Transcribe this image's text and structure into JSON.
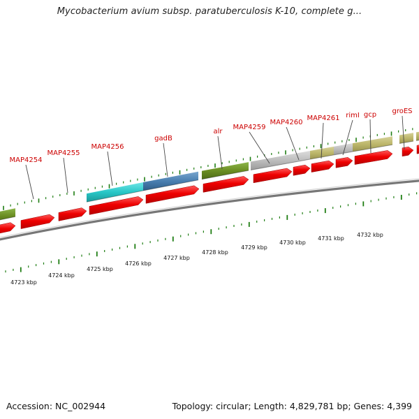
{
  "title": "Mycobacterium avium subsp. paratuberculosis K-10, complete g...",
  "footer": {
    "accession_label": "Accession:",
    "accession": "NC_002944",
    "topology_label": "Topology:",
    "topology": "circular",
    "length_label": "Length:",
    "length": "4,829,781 bp",
    "genes_label": "Genes:",
    "genes": "4,399"
  },
  "colors": {
    "label": "#cc0000",
    "tick": "#1e7d12",
    "backbone": "#888888",
    "arrow": "#ee0000",
    "cog_green": "#6b8e23",
    "cog_cyan": "#29c7c7",
    "cog_blue": "#4a7fb0",
    "cog_gray": "#bdbdbd",
    "cog_khaki": "#bdb76b"
  },
  "scale": {
    "unit": "kbp",
    "labels": [
      "4723 kbp",
      "4724 kbp",
      "4725 kbp",
      "4726 kbp",
      "4727 kbp",
      "4728 kbp",
      "4729 kbp",
      "4730 kbp",
      "4731 kbp",
      "4732 kbp"
    ]
  },
  "gene_labels": [
    "MAP4254",
    "MAP4255",
    "MAP4256",
    "gadB",
    "alr",
    "MAP4259",
    "MAP4260",
    "MAP4261",
    "rimI",
    "gcp",
    "groES"
  ]
}
